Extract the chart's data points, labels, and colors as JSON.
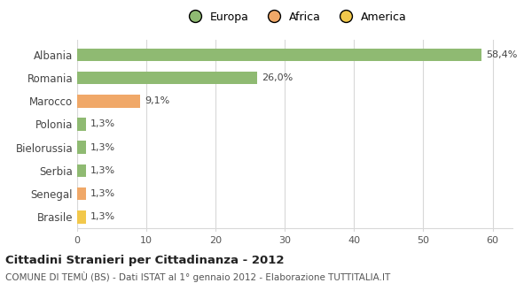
{
  "categories": [
    "Brasile",
    "Senegal",
    "Serbia",
    "Bielorussia",
    "Polonia",
    "Marocco",
    "Romania",
    "Albania"
  ],
  "values": [
    1.3,
    1.3,
    1.3,
    1.3,
    1.3,
    9.1,
    26.0,
    58.4
  ],
  "colors": [
    "#f2c84b",
    "#f0a868",
    "#8fba72",
    "#8fba72",
    "#8fba72",
    "#f0a868",
    "#8fba72",
    "#8fba72"
  ],
  "labels": [
    "1,3%",
    "1,3%",
    "1,3%",
    "1,3%",
    "1,3%",
    "9,1%",
    "26,0%",
    "58,4%"
  ],
  "xlim": [
    0,
    63
  ],
  "xticks": [
    0,
    10,
    20,
    30,
    40,
    50,
    60
  ],
  "title": "Cittadini Stranieri per Cittadinanza - 2012",
  "subtitle": "COMUNE DI TEMÙ (BS) - Dati ISTAT al 1° gennaio 2012 - Elaborazione TUTTITALIA.IT",
  "legend_labels": [
    "Europa",
    "Africa",
    "America"
  ],
  "legend_colors": [
    "#8fba72",
    "#f0a868",
    "#f2c84b"
  ],
  "bg_color": "#ffffff",
  "grid_color": "#d8d8d8",
  "bar_height": 0.55
}
